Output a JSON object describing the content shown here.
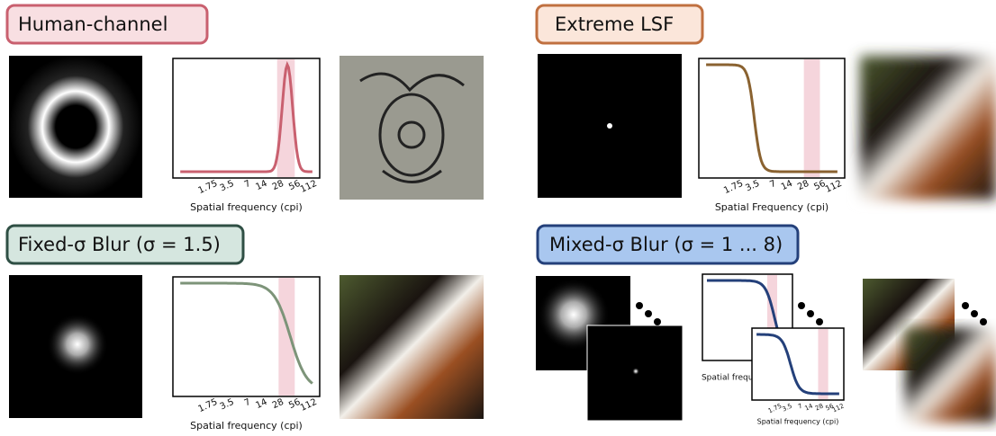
{
  "panels": [
    {
      "title": "Human-channel",
      "plot": {
        "ticks": [
          "1.75",
          "3.5",
          "7",
          "14",
          "28",
          "56",
          "112"
        ],
        "xlabel": "Spatial frequency (cpi)"
      }
    },
    {
      "title": "Extreme LSF",
      "plot": {
        "ticks": [
          "1.75",
          "3.5",
          "7",
          "14",
          "28",
          "56",
          "112"
        ],
        "xlabel": "Spatial Frequency (cpi)"
      }
    },
    {
      "title": "Fixed-σ Blur (σ = 1.5)",
      "plot": {
        "ticks": [
          "1.75",
          "3.5",
          "7",
          "14",
          "28",
          "56",
          "112"
        ],
        "xlabel": "Spatial frequency (cpi)"
      }
    },
    {
      "title": "Mixed-σ Blur (σ = 1 ... 8)",
      "plot_back": {
        "xlabel": "Spatial frequency (cpi)"
      },
      "plot": {
        "ticks": [
          "1.75",
          "3.5",
          "7",
          "14",
          "28",
          "56",
          "112"
        ],
        "xlabel": "Spatial frequency (cpi)"
      }
    }
  ]
}
